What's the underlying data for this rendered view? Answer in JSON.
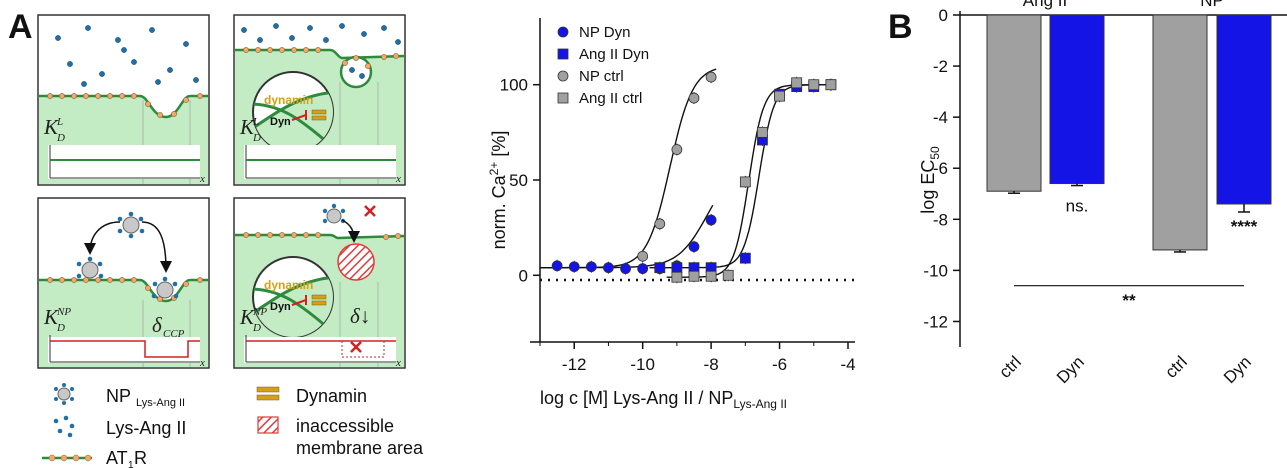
{
  "panel_letters": {
    "a": "A",
    "b": "B"
  },
  "schematic": {
    "kd_main": "K",
    "kd_sub_top": "D",
    "kd_sup_L": "L",
    "kd_sup_NP": "NP",
    "delta_ccp": "δ",
    "delta_ccp_sub": "CCP",
    "delta_down": "δ↓",
    "dynamin_label": "dynamin",
    "dyn_label": "Dyn",
    "x_axis_letter": "x"
  },
  "key": {
    "np_main": "NP",
    "np_sub": "Lys-Ang II",
    "lys_ang": "Lys-Ang II",
    "at1r_main": "AT",
    "at1r_sub": "1",
    "at1r_end": "R",
    "dynamin": "Dynamin",
    "inaccessible_1": "inaccessible",
    "inaccessible_2": "membrane area"
  },
  "chart_data": [
    {
      "type": "scatter",
      "xlabel": "log c [M] Lys-Ang II / NP",
      "xlabel_sub": "Lys-Ang II",
      "ylabel": "norm. Ca",
      "ylabel_sup": "2+",
      "ylabel_end": " [%]",
      "xlim": [
        -13,
        -4
      ],
      "ylim": [
        -35,
        135
      ],
      "xticks": [
        "-12",
        "-10",
        "-8",
        "-6",
        "-4"
      ],
      "yticks": [
        "0",
        "50",
        "100"
      ],
      "legend_position": "top-left",
      "series": [
        {
          "name": "NP Dyn",
          "marker": "circle",
          "color": "#1414e6",
          "x": [
            -12.5,
            -12,
            -11.5,
            -11,
            -10.5,
            -10,
            -9.5,
            -9,
            -8.5,
            -8
          ],
          "y": [
            5,
            4.5,
            4.5,
            4,
            3.5,
            3.5,
            3.5,
            5,
            15,
            29
          ]
        },
        {
          "name": "Ang II Dyn",
          "marker": "square",
          "color": "#1414e6",
          "x": [
            -9.5,
            -9,
            -8.5,
            -8,
            -7,
            -6.5,
            -6,
            -5.5,
            -5,
            -4.5
          ],
          "y": [
            4,
            4,
            4,
            4,
            9,
            71,
            95,
            99,
            99,
            100
          ]
        },
        {
          "name": "NP ctrl",
          "marker": "circle",
          "color": "#a0a0a0",
          "x": [
            -10,
            -9.5,
            -9,
            -8.5,
            -8
          ],
          "y": [
            10,
            27,
            66,
            93,
            104
          ]
        },
        {
          "name": "Ang II ctrl",
          "marker": "square",
          "color": "#a0a0a0",
          "x": [
            -9,
            -8.5,
            -8,
            -7.5,
            -7,
            -6.5,
            -6,
            -5.5,
            -5,
            -4.5
          ],
          "y": [
            -1,
            -0.5,
            -0.5,
            0,
            49,
            75,
            94,
            101,
            100,
            100
          ]
        }
      ]
    },
    {
      "type": "bar",
      "ylabel": "log EC",
      "ylabel_sub": "50",
      "ylim": [
        -13,
        0
      ],
      "yticks": [
        "0",
        "-2",
        "-4",
        "-6",
        "-8",
        "-10",
        "-12"
      ],
      "group_labels": [
        "Ang II",
        "NP"
      ],
      "categories": [
        "ctrl",
        "Dyn",
        "ctrl",
        "Dyn"
      ],
      "values": [
        -6.9,
        -6.6,
        -9.2,
        -7.4
      ],
      "colors": [
        "#a0a0a0",
        "#1414e6",
        "#a0a0a0",
        "#1414e6"
      ],
      "annotations": [
        "ns.",
        "****",
        "**"
      ]
    }
  ]
}
